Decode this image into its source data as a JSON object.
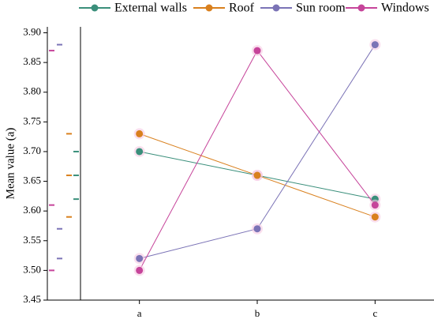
{
  "chart_data": {
    "type": "line",
    "ylabel": "Mean value (a)",
    "categories": [
      "a",
      "b",
      "c"
    ],
    "series": [
      {
        "name": "External walls",
        "color": "#3a8f7b",
        "values": [
          3.7,
          3.66,
          3.62
        ]
      },
      {
        "name": "Roof",
        "color": "#d9801e",
        "values": [
          3.73,
          3.66,
          3.59
        ]
      },
      {
        "name": "Sun room",
        "color": "#7b73b6",
        "values": [
          3.52,
          3.57,
          3.88
        ]
      },
      {
        "name": "Windows",
        "color": "#c6449a",
        "values": [
          3.5,
          3.87,
          3.61
        ]
      }
    ],
    "ylim": [
      3.45,
      3.91
    ],
    "yticks": [
      3.45,
      {
        "value": 3.5,
        "label": "3.50"
      },
      3.55,
      {
        "value": 3.6,
        "label": "3.60"
      },
      3.65,
      {
        "value": 3.7,
        "label": "3.70"
      },
      3.75,
      {
        "value": 3.8,
        "label": "3.80"
      },
      3.85,
      {
        "value": 3.9,
        "label": "3.90"
      }
    ],
    "legend": "top"
  }
}
